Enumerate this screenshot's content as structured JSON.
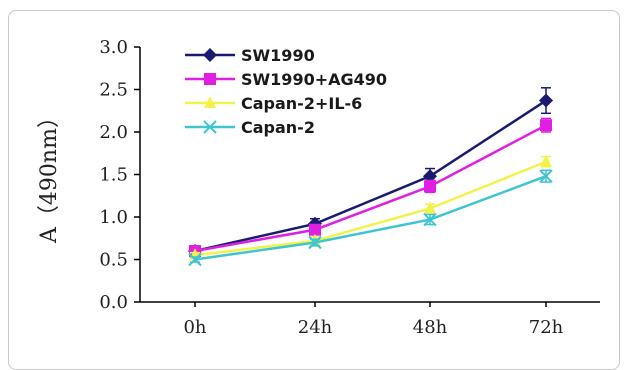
{
  "chart_data": {
    "type": "line",
    "categories": [
      "0h",
      "24h",
      "48h",
      "72h"
    ],
    "ylabel": "A（490nm）",
    "ylim": [
      0,
      3.0
    ],
    "yticks": [
      "0.0",
      "0.5",
      "1.0",
      "1.5",
      "2.0",
      "2.5",
      "3.0"
    ],
    "legend_position": "top-left",
    "grid": false,
    "series": [
      {
        "name": "SW1990",
        "values": [
          0.6,
          0.92,
          1.48,
          2.37
        ],
        "errors": [
          0.03,
          0.06,
          0.09,
          0.15
        ],
        "color": "#1a1a6e",
        "marker": "diamond"
      },
      {
        "name": "SW1990+AG490",
        "values": [
          0.6,
          0.85,
          1.36,
          2.08
        ],
        "errors": [
          0.03,
          0.05,
          0.07,
          0.08
        ],
        "color": "#e020e0",
        "marker": "square"
      },
      {
        "name": "Capan-2+IL-6",
        "values": [
          0.55,
          0.72,
          1.1,
          1.65
        ],
        "errors": [
          0.03,
          0.05,
          0.05,
          0.06
        ],
        "color": "#f2f24a",
        "marker": "triangle"
      },
      {
        "name": "Capan-2",
        "values": [
          0.5,
          0.7,
          0.97,
          1.48
        ],
        "errors": [
          0.03,
          0.04,
          0.06,
          0.07
        ],
        "color": "#40c4d0",
        "marker": "x"
      }
    ]
  }
}
